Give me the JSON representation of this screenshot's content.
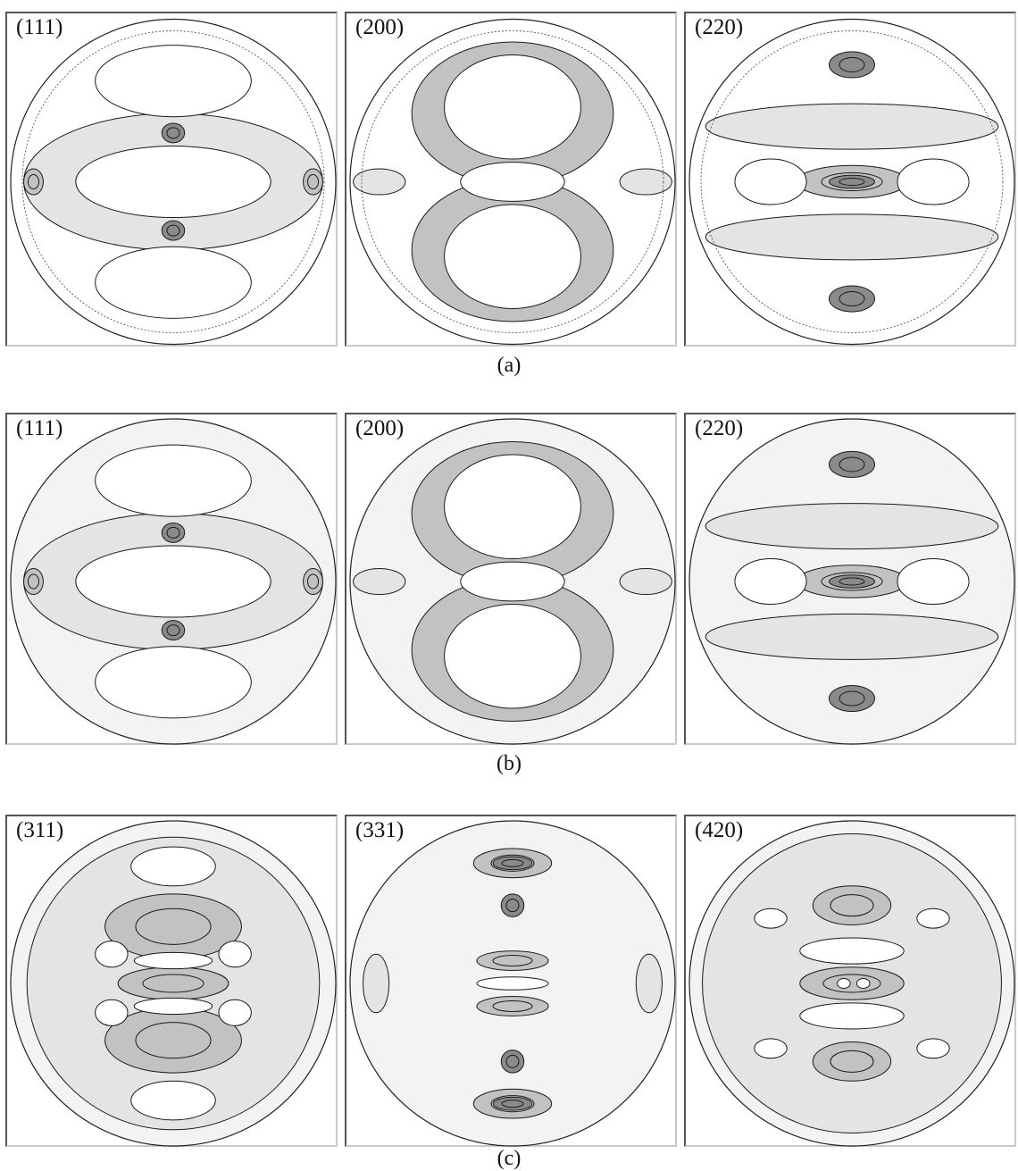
{
  "figure": {
    "rows": [
      {
        "caption": "(a)",
        "panels": [
          {
            "plane": "(111)",
            "style": "measured",
            "pattern": "p111"
          },
          {
            "plane": "(200)",
            "style": "measured",
            "pattern": "p200"
          },
          {
            "plane": "(220)",
            "style": "measured",
            "pattern": "p220"
          }
        ]
      },
      {
        "caption": "(b)",
        "panels": [
          {
            "plane": "(111)",
            "style": "recalculated",
            "pattern": "p111"
          },
          {
            "plane": "(200)",
            "style": "recalculated",
            "pattern": "p200"
          },
          {
            "plane": "(220)",
            "style": "recalculated",
            "pattern": "p220"
          }
        ]
      },
      {
        "caption": "(c)",
        "panels": [
          {
            "plane": "(311)",
            "style": "recalculated",
            "pattern": "p311"
          },
          {
            "plane": "(331)",
            "style": "recalculated",
            "pattern": "p331"
          },
          {
            "plane": "(420)",
            "style": "recalculated",
            "pattern": "p420"
          }
        ]
      }
    ],
    "colors": {
      "shade_light": "#e4e4e4",
      "shade_mid": "#c2c2c2",
      "shade_dark": "#8a8a8a",
      "line": "#1a1a1a"
    }
  }
}
